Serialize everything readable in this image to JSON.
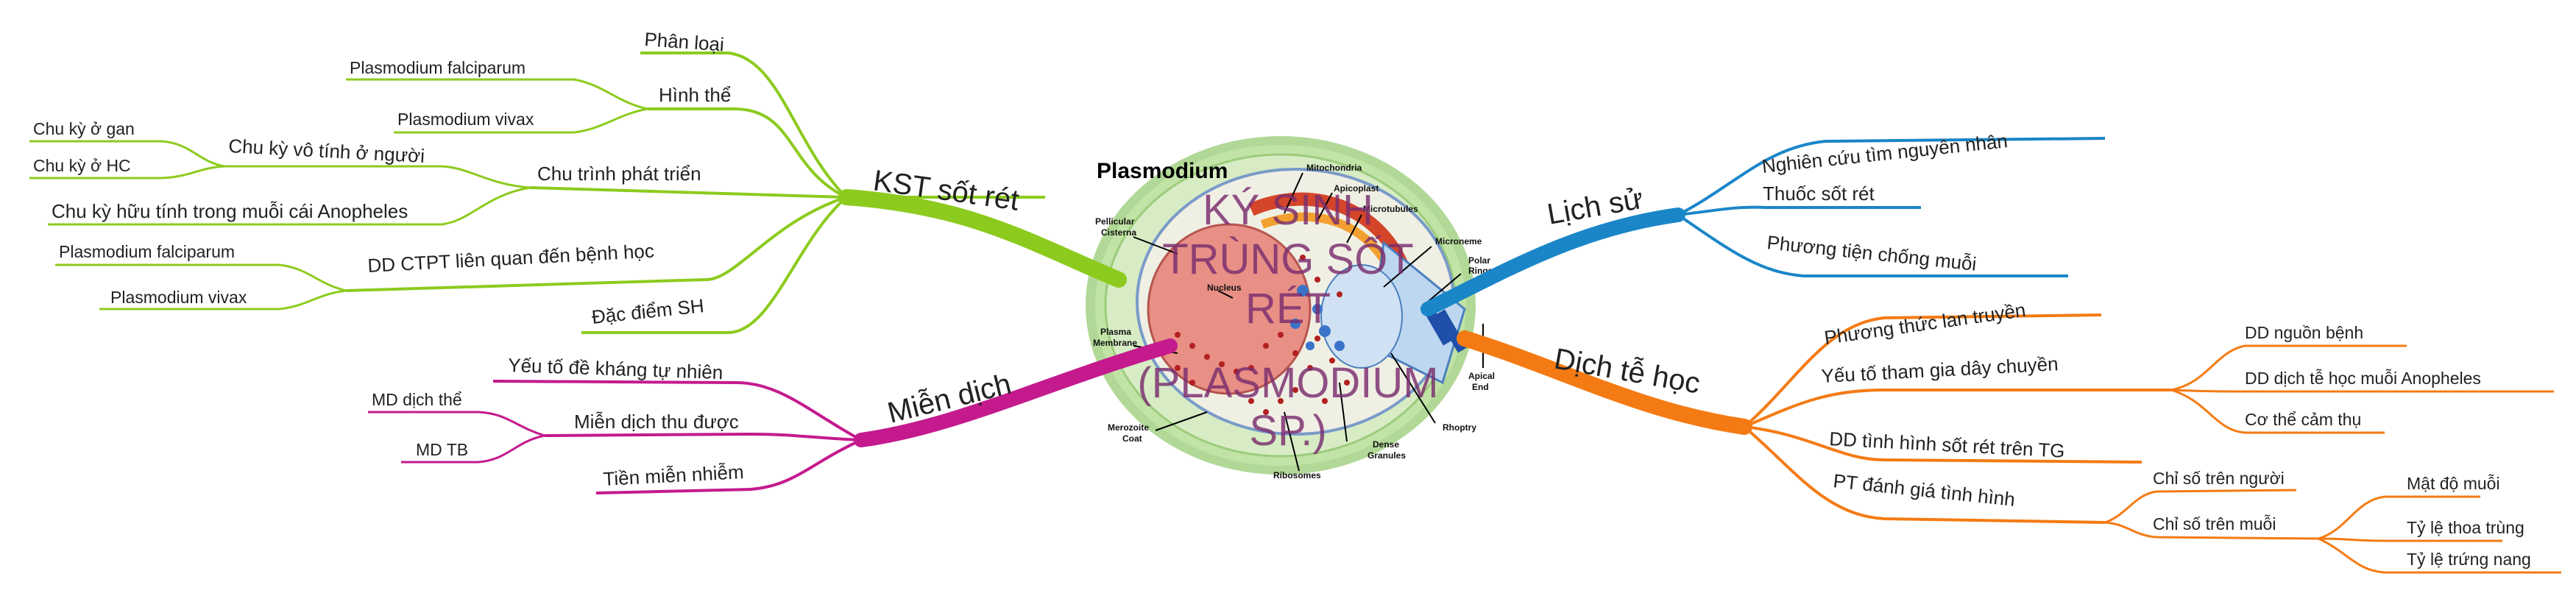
{
  "central": {
    "title_lines": [
      "KÝ SINH",
      "TRÙNG SỐT",
      "RÉT",
      "(PLASMODIUM",
      "SP.)"
    ],
    "image_title": "Plasmodium",
    "image_labels": {
      "mitochondria": "Mitochondria",
      "apicoplast": "Apicoplast",
      "microtubules": "Microtubules",
      "pellicular": "Pellicular",
      "cisterna": "Cisterna",
      "microneme": "Microneme",
      "polar": "Polar",
      "rings": "Rings",
      "nucleus": "Nucleus",
      "plasma": "Plasma",
      "membrane": "Membrane",
      "apical": "Apical",
      "end": "End",
      "merozoite": "Merozoite",
      "coat": "Coat",
      "dense": "Dense",
      "granules": "Granules",
      "rhoptry": "Rhoptry",
      "ribosomes": "Ribosomes"
    }
  },
  "colors": {
    "kst": "#8ccb1e",
    "mien_dich": "#c41a8e",
    "lich_su": "#1a86c8",
    "dich_te": "#f47b14"
  },
  "branches": {
    "kst": {
      "label": "KST sốt rét",
      "phan_loai": "Phân loại",
      "hinh_the": "Hình thể",
      "hinh_the_children": [
        "Plasmodium falciparum",
        "Plasmodium vivax"
      ],
      "chu_trinh": "Chu trình phát triển",
      "chu_ky_vo_tinh": "Chu kỳ vô tính ở người",
      "chu_ky_vo_tinh_children": [
        "Chu kỳ ở gan",
        "Chu kỳ ở HC"
      ],
      "chu_ky_huu_tinh": "Chu kỳ hữu tính trong muỗi cái Anopheles",
      "dd_ctpt": "DD CTPT liên quan đến bệnh học",
      "dd_ctpt_children": [
        "Plasmodium falciparum",
        "Plasmodium vivax"
      ],
      "dac_diem": "Đặc điểm SH"
    },
    "mien_dich": {
      "label": "Miễn dịch",
      "yeu_to": "Yếu tố đề kháng tự nhiên",
      "thu_duoc": "Miễn dịch thu được",
      "thu_duoc_children": [
        "MD dịch thể",
        "MD TB"
      ],
      "tien_mien": "Tiền miễn nhiễm"
    },
    "lich_su": {
      "label": "Lịch sử",
      "children": [
        "Nghiên cứu tìm nguyên nhân",
        "Thuốc sốt rét",
        "Phương tiện chống muỗi"
      ]
    },
    "dich_te": {
      "label": "Dịch tễ học",
      "phuong_thuc": "Phương thức lan truyền",
      "yeu_to": "Yếu tố tham gia dây chuyền",
      "yeu_to_children": [
        "DD nguồn bệnh",
        "DD dịch tễ học muỗi Anopheles",
        "Cơ thể cảm thụ"
      ],
      "dd_tinh_hinh": "DD tình hình sốt rét trên TG",
      "pt_danh_gia": "PT đánh giá tình hình",
      "chi_so_nguoi": "Chỉ số trên người",
      "chi_so_muoi": "Chỉ số trên muỗi",
      "chi_so_muoi_children": [
        "Mật độ muỗi",
        "Tỷ lệ thoa trùng",
        "Tỷ lệ trứng nang"
      ]
    }
  }
}
